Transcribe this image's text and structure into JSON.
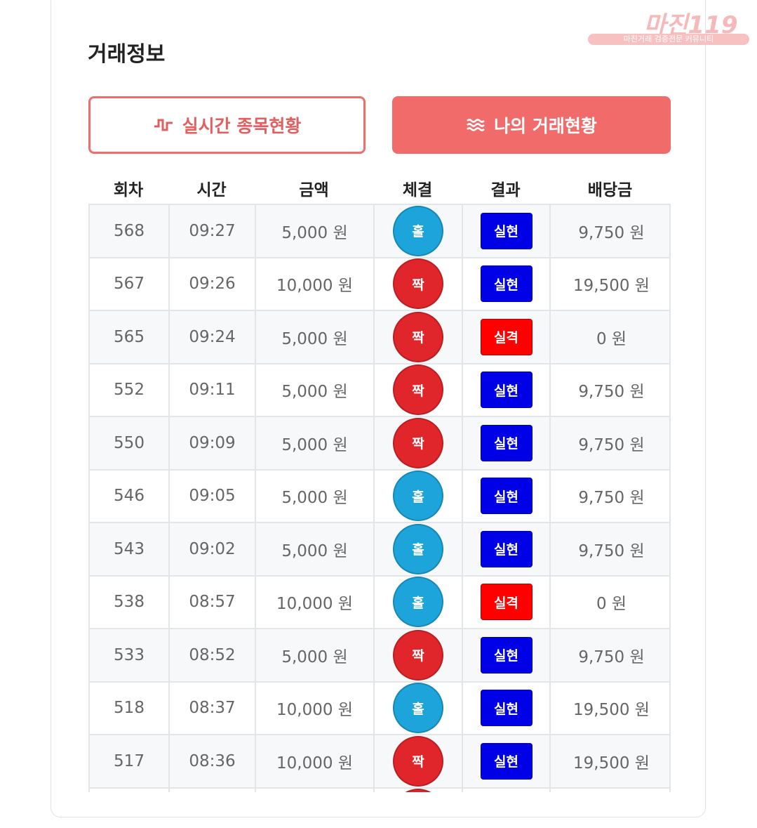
{
  "watermark": {
    "logo": "마진119",
    "tagline": "마진거래 검증전문 커뮤니티"
  },
  "header": {
    "title": "거래정보"
  },
  "tabs": [
    "실시간 종목현황",
    "나의 거래현황"
  ],
  "table": {
    "columns": [
      "회차",
      "시간",
      "금액",
      "체결",
      "결과",
      "배당금"
    ],
    "rows": [
      {
        "round": "568",
        "time": "09:27",
        "amount": "5,000 원",
        "pick": "홀",
        "pick_color": "#1da5db",
        "result": "실현",
        "result_color": "#0000e6",
        "payout": "9,750 원"
      },
      {
        "round": "567",
        "time": "09:26",
        "amount": "10,000 원",
        "pick": "짝",
        "pick_color": "#e0262b",
        "result": "실현",
        "result_color": "#0000e6",
        "payout": "19,500 원"
      },
      {
        "round": "565",
        "time": "09:24",
        "amount": "5,000 원",
        "pick": "짝",
        "pick_color": "#e0262b",
        "result": "실격",
        "result_color": "#ff0000",
        "payout": "0 원"
      },
      {
        "round": "552",
        "time": "09:11",
        "amount": "5,000 원",
        "pick": "짝",
        "pick_color": "#e0262b",
        "result": "실현",
        "result_color": "#0000e6",
        "payout": "9,750 원"
      },
      {
        "round": "550",
        "time": "09:09",
        "amount": "5,000 원",
        "pick": "짝",
        "pick_color": "#e0262b",
        "result": "실현",
        "result_color": "#0000e6",
        "payout": "9,750 원"
      },
      {
        "round": "546",
        "time": "09:05",
        "amount": "5,000 원",
        "pick": "홀",
        "pick_color": "#1da5db",
        "result": "실현",
        "result_color": "#0000e6",
        "payout": "9,750 원"
      },
      {
        "round": "543",
        "time": "09:02",
        "amount": "5,000 원",
        "pick": "홀",
        "pick_color": "#1da5db",
        "result": "실현",
        "result_color": "#0000e6",
        "payout": "9,750 원"
      },
      {
        "round": "538",
        "time": "08:57",
        "amount": "10,000 원",
        "pick": "홀",
        "pick_color": "#1da5db",
        "result": "실격",
        "result_color": "#ff0000",
        "payout": "0 원"
      },
      {
        "round": "533",
        "time": "08:52",
        "amount": "5,000 원",
        "pick": "짝",
        "pick_color": "#e0262b",
        "result": "실현",
        "result_color": "#0000e6",
        "payout": "9,750 원"
      },
      {
        "round": "518",
        "time": "08:37",
        "amount": "10,000 원",
        "pick": "홀",
        "pick_color": "#1da5db",
        "result": "실현",
        "result_color": "#0000e6",
        "payout": "19,500 원"
      },
      {
        "round": "517",
        "time": "08:36",
        "amount": "10,000 원",
        "pick": "짝",
        "pick_color": "#e0262b",
        "result": "실현",
        "result_color": "#0000e6",
        "payout": "19,500 원"
      }
    ]
  }
}
